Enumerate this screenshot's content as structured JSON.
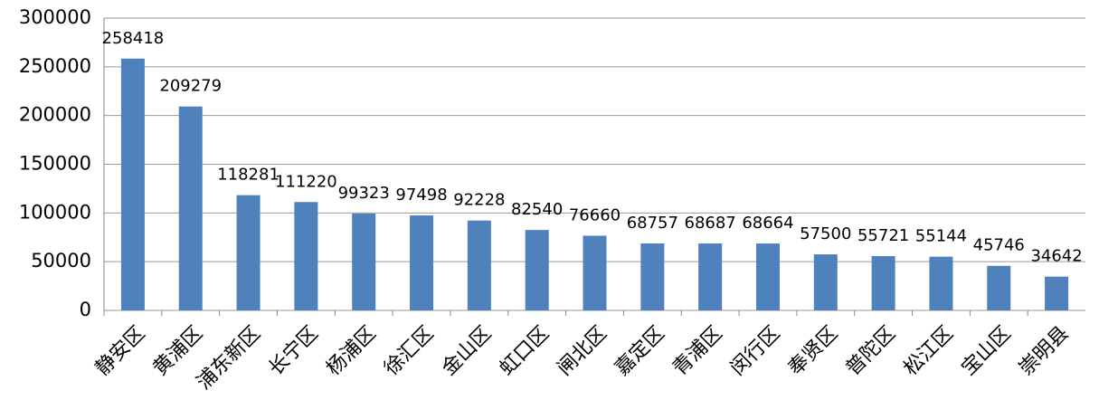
{
  "chart_data": {
    "type": "bar",
    "categories": [
      "静安区",
      "黄浦区",
      "浦东新区",
      "长宁区",
      "杨浦区",
      "徐汇区",
      "金山区",
      "虹口区",
      "闸北区",
      "嘉定区",
      "青浦区",
      "闵行区",
      "奉贤区",
      "普陀区",
      "松江区",
      "宝山区",
      "崇明县"
    ],
    "values": [
      258418,
      209279,
      118281,
      111220,
      99323,
      97498,
      92228,
      82540,
      76660,
      68757,
      68687,
      68664,
      57500,
      55721,
      55144,
      45746,
      34642
    ],
    "color": "#4f81bd",
    "ylim": [
      0,
      300000
    ],
    "yticks": [
      0,
      50000,
      100000,
      150000,
      200000,
      250000,
      300000
    ],
    "grid": true
  }
}
